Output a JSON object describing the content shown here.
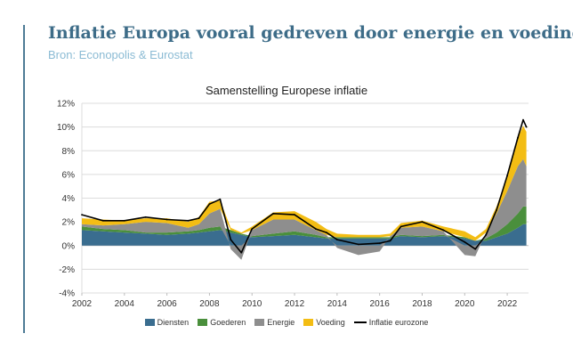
{
  "title": "Inflatie Europa vooral gedreven door energie en voeding",
  "subtitle": "Bron: Econopolis & Eurostat",
  "colors": {
    "title": "#3d6c88",
    "subtitle": "#8bbbd4",
    "accent_bar": "#4e7b95"
  },
  "chart_data": {
    "type": "area",
    "title": "Samenstelling Europese inflatie",
    "xlabel": "",
    "ylabel": "",
    "x_ticks": [
      "2002",
      "2004",
      "2006",
      "2008",
      "2010",
      "2012",
      "2014",
      "2016",
      "2018",
      "2020",
      "2022"
    ],
    "y_ticks": [
      "12%",
      "10%",
      "8%",
      "6%",
      "4%",
      "2%",
      "0%",
      "-2%",
      "-4%"
    ],
    "ylim": [
      -4,
      12
    ],
    "xlim": [
      2002,
      2023
    ],
    "grid": true,
    "legend": "bottom",
    "x": [
      2002.0,
      2003.0,
      2004.0,
      2005.0,
      2006.0,
      2007.0,
      2007.5,
      2008.0,
      2008.5,
      2009.0,
      2009.5,
      2010.0,
      2011.0,
      2012.0,
      2013.0,
      2013.5,
      2014.0,
      2015.0,
      2016.0,
      2016.5,
      2017.0,
      2018.0,
      2019.0,
      2020.0,
      2020.5,
      2021.0,
      2021.5,
      2022.0,
      2022.5,
      2022.75,
      2022.9
    ],
    "series": [
      {
        "name": "Diensten",
        "color": "#3a6d8f",
        "values": [
          1.3,
          1.2,
          1.1,
          1.0,
          0.9,
          1.0,
          1.1,
          1.2,
          1.3,
          1.1,
          0.9,
          0.7,
          0.8,
          0.9,
          0.7,
          0.6,
          0.6,
          0.6,
          0.6,
          0.6,
          0.8,
          0.7,
          0.8,
          0.6,
          0.4,
          0.4,
          0.7,
          1.0,
          1.5,
          1.8,
          1.8
        ]
      },
      {
        "name": "Goederen",
        "color": "#4a8f3c",
        "values": [
          0.3,
          0.2,
          0.2,
          0.1,
          0.2,
          0.2,
          0.2,
          0.3,
          0.3,
          0.2,
          0.1,
          0.1,
          0.2,
          0.3,
          0.2,
          0.1,
          0.1,
          0.1,
          0.1,
          0.1,
          0.1,
          0.1,
          0.1,
          0.1,
          0.0,
          0.2,
          0.4,
          0.8,
          1.2,
          1.5,
          1.5
        ]
      },
      {
        "name": "Energie",
        "color": "#8e8e8e",
        "values": [
          0.2,
          0.3,
          0.5,
          0.9,
          0.8,
          0.3,
          0.5,
          1.2,
          1.5,
          -0.3,
          -1.2,
          0.5,
          1.2,
          1.0,
          0.4,
          0.2,
          -0.2,
          -0.8,
          -0.5,
          0.1,
          0.6,
          0.8,
          0.3,
          -0.8,
          -0.9,
          0.5,
          1.6,
          2.8,
          4.0,
          4.0,
          3.4
        ]
      },
      {
        "name": "Voeding",
        "color": "#f3bd14",
        "values": [
          0.5,
          0.5,
          0.3,
          0.3,
          0.4,
          0.5,
          0.6,
          1.0,
          0.7,
          0.2,
          0.1,
          0.3,
          0.6,
          0.7,
          0.7,
          0.5,
          0.3,
          0.2,
          0.2,
          0.2,
          0.4,
          0.5,
          0.4,
          0.5,
          0.3,
          0.3,
          0.6,
          1.2,
          2.4,
          2.8,
          2.9
        ]
      },
      {
        "name": "Inflatie eurozone",
        "color": "#000000",
        "type": "line",
        "values": [
          2.6,
          2.1,
          2.1,
          2.4,
          2.2,
          2.1,
          2.3,
          3.5,
          3.9,
          0.5,
          -0.6,
          1.4,
          2.7,
          2.6,
          1.4,
          1.1,
          0.5,
          0.1,
          0.2,
          0.4,
          1.6,
          2.0,
          1.3,
          0.3,
          -0.3,
          0.9,
          3.0,
          5.9,
          9.1,
          10.6,
          10.0
        ]
      }
    ]
  }
}
